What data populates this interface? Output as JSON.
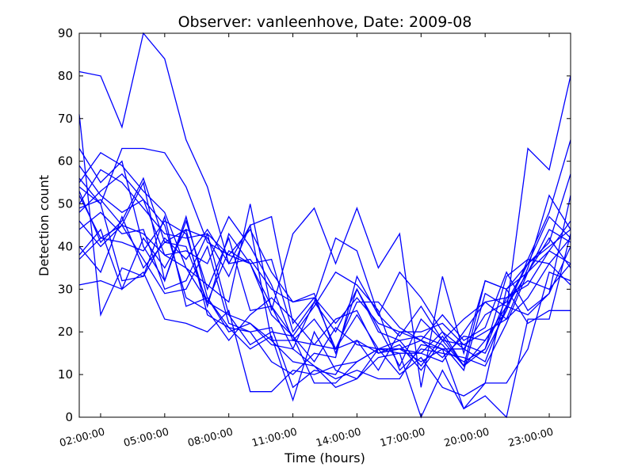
{
  "chart_data": {
    "type": "line",
    "title": "Observer: vanleenhove, Date: 2009-08",
    "xlabel": "Time (hours)",
    "ylabel": "Detection count",
    "x": [
      1.0,
      2.0,
      3.0,
      4.0,
      5.0,
      6.0,
      7.0,
      8.0,
      9.0,
      10.0,
      11.0,
      12.0,
      13.0,
      14.0,
      15.0,
      16.0,
      17.0,
      18.0,
      19.0,
      20.0,
      21.0,
      22.0,
      23.0,
      24.0
    ],
    "xlim": [
      1.0,
      24.0
    ],
    "x_ticks": [
      2,
      5,
      8,
      11,
      14,
      17,
      20,
      23
    ],
    "x_tick_labels": [
      "02:00:00",
      "05:00:00",
      "08:00:00",
      "11:00:00",
      "14:00:00",
      "17:00:00",
      "20:00:00",
      "23:00:00"
    ],
    "ylim": [
      0,
      90
    ],
    "y_ticks": [
      0,
      10,
      20,
      30,
      40,
      50,
      60,
      70,
      80,
      90
    ],
    "y_tick_labels": [
      "0",
      "10",
      "20",
      "30",
      "40",
      "50",
      "60",
      "70",
      "80",
      "90"
    ],
    "line_color": "#0000ff",
    "grid": false,
    "series": [
      {
        "values": [
          81,
          80,
          68,
          90,
          84,
          65,
          54,
          36,
          37,
          30,
          27,
          28,
          22,
          28,
          22,
          20,
          20,
          22,
          17,
          15,
          25,
          63,
          58,
          80
        ]
      },
      {
        "values": [
          71,
          24,
          35,
          33,
          42,
          37,
          44,
          36,
          45,
          18,
          18,
          17,
          16,
          18,
          15,
          17,
          11,
          18,
          12,
          18,
          25,
          37,
          48,
          65
        ]
      },
      {
        "values": [
          63,
          55,
          60,
          40,
          32,
          47,
          28,
          20,
          22,
          18,
          13,
          12,
          7,
          9,
          16,
          16,
          13,
          16,
          16,
          13,
          26,
          36,
          41,
          57
        ]
      },
      {
        "values": [
          55,
          62,
          59,
          53,
          48,
          35,
          27,
          24,
          17,
          20,
          19,
          8,
          8,
          13,
          16,
          16,
          15,
          13,
          20,
          27,
          23,
          35,
          52,
          44
        ]
      },
      {
        "values": [
          54,
          50,
          63,
          63,
          62,
          54,
          41,
          38,
          36,
          26,
          19,
          13,
          21,
          17,
          16,
          18,
          12,
          19,
          12,
          32,
          30,
          36,
          47,
          42
        ]
      },
      {
        "values": [
          59,
          52,
          48,
          51,
          45,
          28,
          25,
          18,
          24,
          28,
          23,
          17,
          23,
          25,
          15,
          16,
          18,
          14,
          19,
          18,
          26,
          24,
          29,
          52
        ]
      },
      {
        "values": [
          50,
          58,
          55,
          49,
          43,
          42,
          43,
          38,
          44,
          34,
          27,
          29,
          15,
          30,
          20,
          18,
          19,
          17,
          11,
          29,
          26,
          34,
          44,
          41
        ]
      },
      {
        "values": [
          48,
          53,
          57,
          51,
          38,
          39,
          36,
          47,
          40,
          31,
          18,
          23,
          16,
          24,
          16,
          15,
          15,
          20,
          16,
          24,
          27,
          36,
          40,
          44
        ]
      },
      {
        "values": [
          40,
          34,
          47,
          35,
          41,
          40,
          27,
          39,
          36,
          24,
          19,
          26,
          34,
          31,
          25,
          11,
          16,
          15,
          14,
          12,
          22,
          34,
          39,
          36
        ]
      },
      {
        "values": [
          37,
          42,
          45,
          37,
          29,
          30,
          40,
          22,
          20,
          21,
          7,
          11,
          10,
          18,
          11,
          20,
          18,
          16,
          13,
          16,
          28,
          31,
          39,
          46
        ]
      },
      {
        "values": [
          49,
          51,
          45,
          55,
          32,
          46,
          30,
          42,
          25,
          26,
          16,
          27,
          42,
          39,
          24,
          34,
          28,
          20,
          12,
          16,
          33,
          37,
          36,
          42
        ]
      },
      {
        "values": [
          38,
          44,
          30,
          42,
          35,
          44,
          42,
          33,
          45,
          47,
          22,
          28,
          16,
          27,
          27,
          21,
          18,
          24,
          18,
          21,
          34,
          25,
          29,
          40
        ]
      },
      {
        "values": [
          52,
          42,
          41,
          39,
          46,
          43,
          26,
          43,
          36,
          37,
          20,
          27,
          20,
          30,
          21,
          12,
          23,
          18,
          17,
          20,
          23,
          28,
          36,
          31
        ]
      },
      {
        "values": [
          31,
          32,
          30,
          34,
          23,
          22,
          20,
          25,
          6,
          6,
          11,
          10,
          12,
          13,
          16,
          10,
          14,
          7,
          5,
          8,
          8,
          16,
          34,
          32
        ]
      },
      {
        "values": [
          44,
          48,
          43,
          44,
          30,
          32,
          43,
          24,
          22,
          17,
          16,
          12,
          9,
          11,
          9,
          9,
          17,
          16,
          2,
          8,
          30,
          22,
          25,
          25
        ]
      },
      {
        "values": [
          56,
          50,
          32,
          33,
          47,
          26,
          28,
          21,
          16,
          19,
          4,
          20,
          11,
          9,
          14,
          15,
          0,
          11,
          2,
          5,
          0,
          23,
          23,
          43
        ]
      },
      {
        "values": [
          53,
          41,
          46,
          56,
          41,
          44,
          24,
          21,
          20,
          13,
          10,
          15,
          14,
          33,
          24,
          19,
          26,
          18,
          23,
          27,
          28,
          32,
          30,
          36
        ]
      },
      {
        "values": [
          46,
          40,
          45,
          43,
          38,
          35,
          31,
          27,
          50,
          25,
          43,
          49,
          36,
          49,
          35,
          43,
          7,
          33,
          15,
          32,
          30,
          34,
          42,
          35
        ]
      }
    ]
  }
}
